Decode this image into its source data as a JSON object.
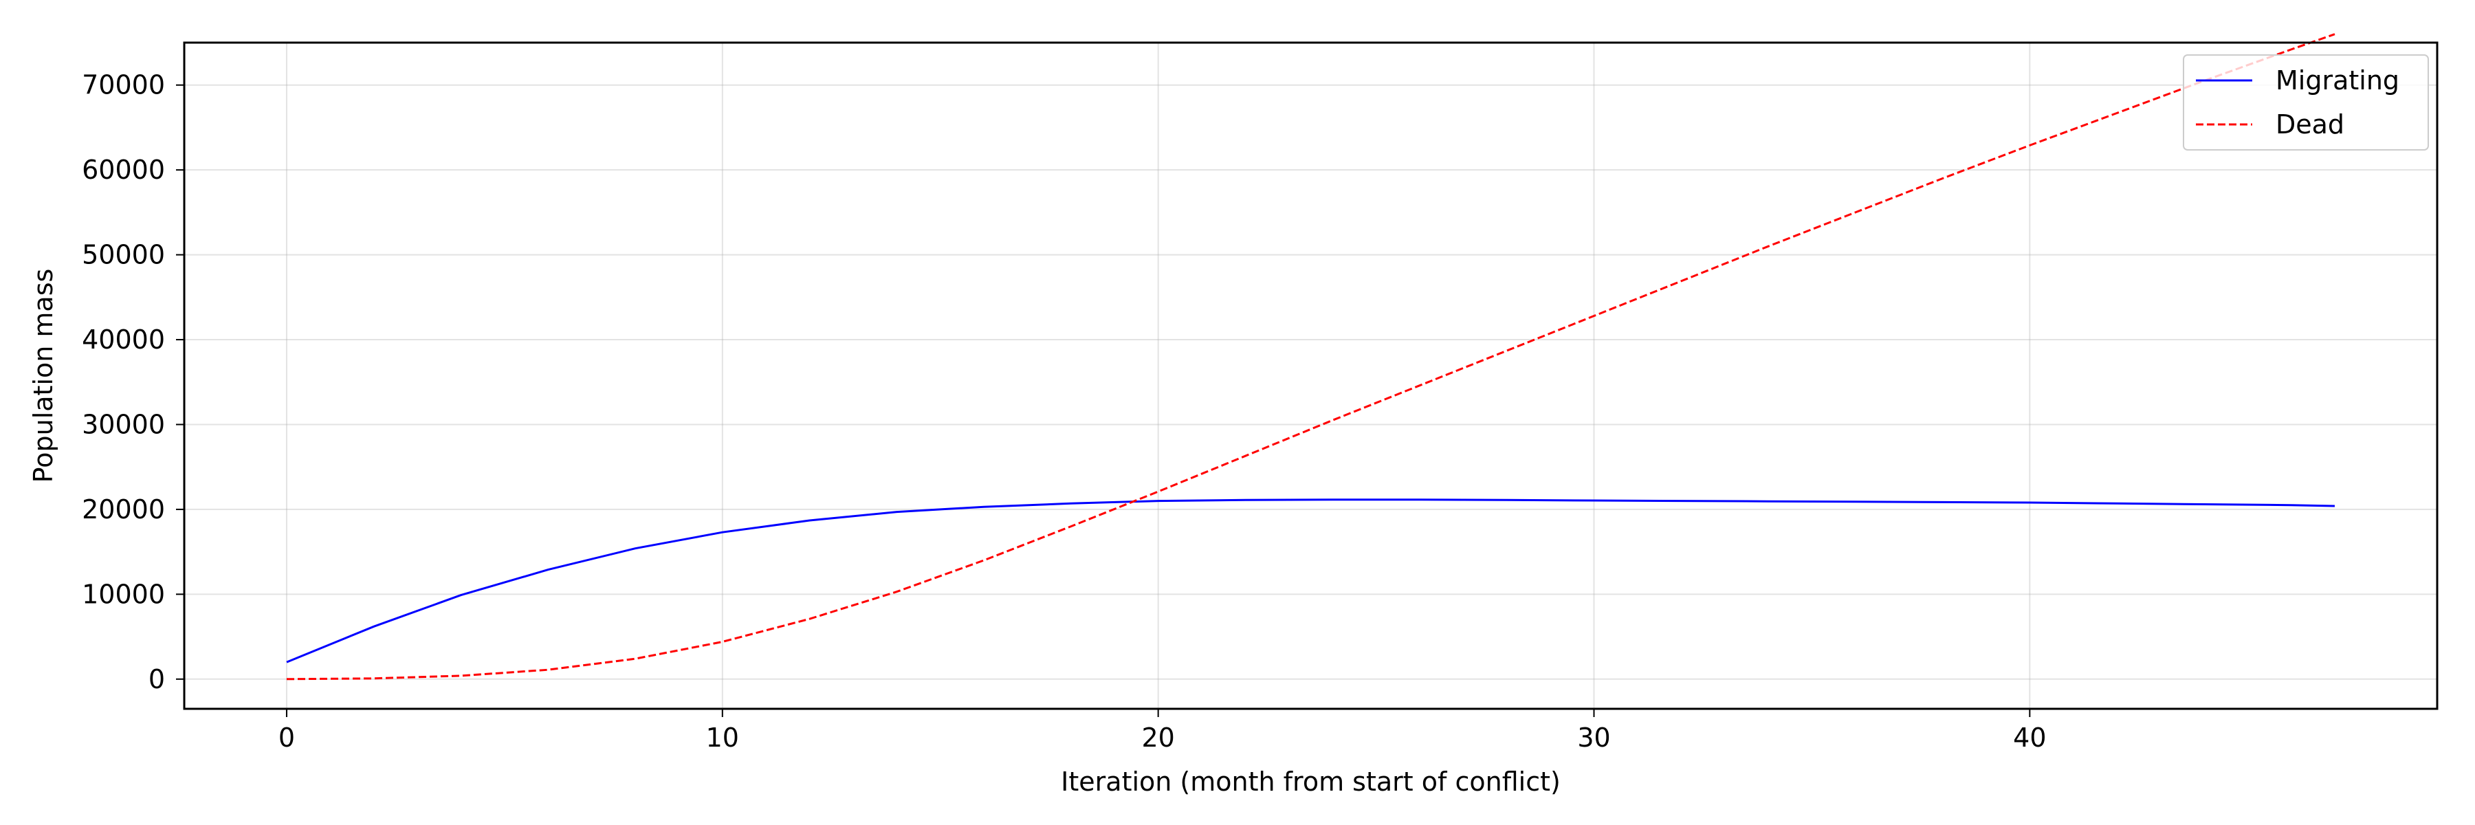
{
  "chart_data": {
    "type": "line",
    "title": "",
    "xlabel": "Iteration (month from start of conflict)",
    "ylabel": "Population mass",
    "xlim": [
      -2.35,
      49.35
    ],
    "ylim": [
      -3500,
      75000
    ],
    "xticks": [
      0,
      10,
      20,
      30,
      40
    ],
    "yticks": [
      0,
      10000,
      20000,
      30000,
      40000,
      50000,
      60000,
      70000
    ],
    "grid": true,
    "legend_position": "upper right",
    "series": [
      {
        "name": "Migrating",
        "color": "#0000ff",
        "style": "solid",
        "x": [
          0,
          2,
          4,
          6,
          8,
          10,
          12,
          14,
          16,
          18,
          20,
          22,
          24,
          26,
          28,
          30,
          32,
          34,
          36,
          38,
          40,
          42,
          44,
          46,
          47
        ],
        "y": [
          2000,
          6200,
          9900,
          12900,
          15400,
          17300,
          18700,
          19700,
          20300,
          20700,
          21000,
          21100,
          21150,
          21150,
          21100,
          21050,
          21000,
          20950,
          20900,
          20850,
          20800,
          20700,
          20600,
          20500,
          20400
        ]
      },
      {
        "name": "Dead",
        "color": "#ff0000",
        "style": "dashed",
        "x": [
          0,
          2,
          4,
          6,
          8,
          10,
          12,
          14,
          16,
          18,
          20,
          22,
          24,
          26,
          28,
          30,
          32,
          34,
          36,
          38,
          40,
          42,
          44,
          46,
          47
        ],
        "y": [
          0,
          80,
          400,
          1100,
          2400,
          4400,
          7100,
          10300,
          14000,
          18000,
          22100,
          26300,
          30500,
          34600,
          38700,
          42800,
          46900,
          51000,
          55000,
          59000,
          62900,
          66700,
          70500,
          74200,
          76000
        ]
      }
    ]
  }
}
